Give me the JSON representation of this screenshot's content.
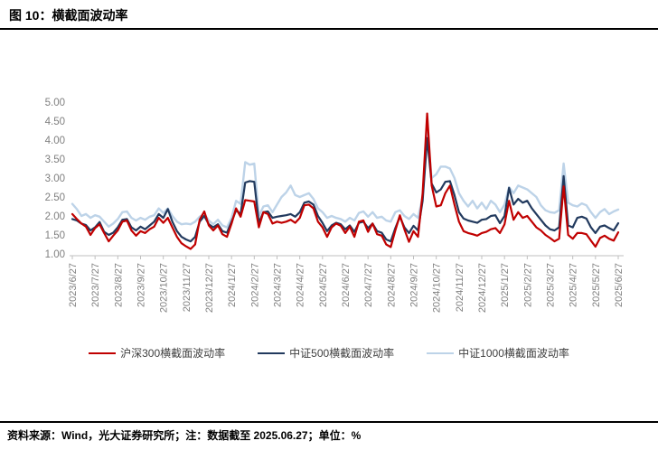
{
  "title": "图 10：横截面波动率",
  "source_note": "资料来源：Wind，光大证券研究所；注：数据截至 2025.06.27；单位：%",
  "chart_data": {
    "type": "line",
    "title": "横截面波动率",
    "unit": "%",
    "grid": false,
    "legend_position": "bottom",
    "ylim": [
      1.0,
      5.0
    ],
    "y_tick_labels": [
      "5.00",
      "4.50",
      "4.00",
      "3.50",
      "3.00",
      "2.50",
      "2.00",
      "1.50",
      "1.00"
    ],
    "x_tick_labels": [
      "2023/6/27",
      "2023/7/27",
      "2023/8/27",
      "2023/9/27",
      "2023/10/27",
      "2023/11/27",
      "2023/12/27",
      "2024/1/27",
      "2024/2/27",
      "2024/3/27",
      "2024/4/27",
      "2024/5/27",
      "2024/6/27",
      "2024/7/27",
      "2024/8/27",
      "2024/9/27",
      "2024/10/27",
      "2024/11/27",
      "2024/12/27",
      "2025/1/27",
      "2025/2/27",
      "2025/3/27",
      "2025/4/27",
      "2025/5/27",
      "2025/6/27"
    ],
    "sampling_note": "values sampled ~every 6 days (5 per month) from 2023/6/27 to 2025/6/27",
    "axis_color": "#BFBFBF",
    "tick_label_color": "#7F7F7F",
    "series": [
      {
        "name": "沪深300横截面波动率",
        "color": "#C00000",
        "width": 2.2,
        "values": [
          2.05,
          1.92,
          1.8,
          1.72,
          1.5,
          1.68,
          1.78,
          1.55,
          1.33,
          1.48,
          1.62,
          1.85,
          1.88,
          1.62,
          1.48,
          1.6,
          1.55,
          1.65,
          1.72,
          1.95,
          1.82,
          1.95,
          1.7,
          1.45,
          1.28,
          1.2,
          1.13,
          1.25,
          1.9,
          2.12,
          1.75,
          1.62,
          1.75,
          1.52,
          1.45,
          1.8,
          2.2,
          1.98,
          2.42,
          2.4,
          2.38,
          1.7,
          2.1,
          2.05,
          1.8,
          1.85,
          1.82,
          1.85,
          1.9,
          1.82,
          1.95,
          2.28,
          2.3,
          2.2,
          1.85,
          1.7,
          1.45,
          1.7,
          1.8,
          1.74,
          1.55,
          1.72,
          1.45,
          1.85,
          1.88,
          1.58,
          1.8,
          1.52,
          1.48,
          1.25,
          1.18,
          1.62,
          2.02,
          1.65,
          1.32,
          1.6,
          1.45,
          2.6,
          4.7,
          2.8,
          2.25,
          2.28,
          2.6,
          2.8,
          2.3,
          1.85,
          1.6,
          1.55,
          1.52,
          1.48,
          1.55,
          1.58,
          1.65,
          1.68,
          1.55,
          1.78,
          2.4,
          1.9,
          2.1,
          1.95,
          2.0,
          1.85,
          1.7,
          1.62,
          1.5,
          1.42,
          1.33,
          1.4,
          2.78,
          1.5,
          1.4,
          1.55,
          1.55,
          1.52,
          1.35,
          1.19,
          1.42,
          1.48,
          1.4,
          1.35,
          1.57
        ]
      },
      {
        "name": "中证500横截面波动率",
        "color": "#223A5E",
        "width": 2.2,
        "values": [
          1.92,
          1.88,
          1.8,
          1.76,
          1.62,
          1.7,
          1.84,
          1.58,
          1.5,
          1.56,
          1.7,
          1.9,
          1.92,
          1.7,
          1.62,
          1.72,
          1.65,
          1.75,
          1.85,
          2.05,
          1.95,
          2.18,
          1.85,
          1.6,
          1.45,
          1.38,
          1.33,
          1.45,
          1.85,
          2.0,
          1.78,
          1.7,
          1.78,
          1.6,
          1.56,
          1.85,
          2.15,
          2.05,
          2.88,
          2.92,
          2.9,
          1.82,
          2.1,
          2.12,
          1.95,
          1.98,
          2.0,
          2.02,
          2.05,
          1.98,
          2.1,
          2.35,
          2.38,
          2.3,
          2.0,
          1.82,
          1.6,
          1.75,
          1.82,
          1.78,
          1.65,
          1.75,
          1.58,
          1.82,
          1.85,
          1.68,
          1.8,
          1.6,
          1.56,
          1.38,
          1.33,
          1.68,
          1.98,
          1.7,
          1.55,
          1.74,
          1.62,
          2.4,
          4.05,
          2.85,
          2.62,
          2.7,
          2.9,
          2.92,
          2.55,
          2.1,
          1.93,
          1.88,
          1.85,
          1.82,
          1.9,
          1.92,
          2.0,
          2.02,
          1.81,
          2.0,
          2.74,
          2.3,
          2.45,
          2.35,
          2.4,
          2.2,
          2.05,
          1.9,
          1.75,
          1.65,
          1.62,
          1.7,
          3.05,
          1.75,
          1.7,
          1.95,
          1.98,
          1.93,
          1.7,
          1.55,
          1.72,
          1.75,
          1.68,
          1.62,
          1.81
        ]
      },
      {
        "name": "中证1000横截面波动率",
        "color": "#BDD3E8",
        "width": 2.4,
        "values": [
          2.32,
          2.18,
          2.0,
          2.05,
          1.95,
          2.02,
          1.98,
          1.85,
          1.72,
          1.8,
          1.92,
          2.1,
          2.12,
          1.95,
          1.88,
          1.95,
          1.9,
          1.98,
          2.02,
          2.2,
          2.08,
          2.2,
          2.0,
          1.85,
          1.78,
          1.8,
          1.78,
          1.85,
          1.98,
          2.05,
          1.88,
          1.78,
          1.9,
          1.75,
          1.7,
          1.95,
          2.4,
          2.32,
          3.42,
          3.35,
          3.38,
          2.0,
          2.25,
          2.28,
          2.1,
          2.3,
          2.5,
          2.62,
          2.8,
          2.55,
          2.5,
          2.55,
          2.6,
          2.45,
          2.2,
          2.1,
          1.95,
          2.0,
          1.95,
          1.92,
          1.85,
          1.95,
          1.88,
          2.08,
          2.12,
          1.98,
          2.1,
          1.95,
          1.98,
          1.88,
          1.85,
          2.1,
          2.15,
          2.0,
          1.92,
          2.05,
          1.95,
          2.5,
          4.2,
          3.0,
          3.1,
          3.3,
          3.3,
          3.25,
          3.0,
          2.6,
          2.4,
          2.25,
          2.4,
          2.2,
          2.35,
          2.18,
          2.4,
          2.3,
          2.1,
          2.3,
          2.76,
          2.6,
          2.8,
          2.75,
          2.7,
          2.6,
          2.5,
          2.28,
          2.15,
          2.1,
          2.08,
          2.15,
          3.38,
          2.35,
          2.28,
          2.25,
          2.33,
          2.28,
          2.1,
          1.95,
          2.1,
          2.18,
          2.05,
          2.12,
          2.17
        ]
      }
    ]
  }
}
